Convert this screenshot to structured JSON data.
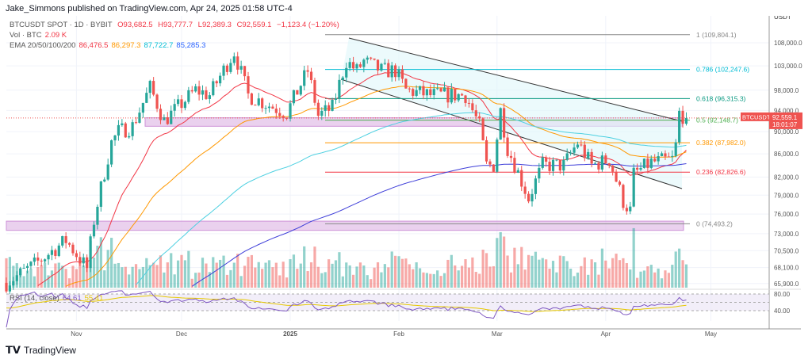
{
  "header": {
    "published": "Jake_Simmons published on TradingView.com, Apr 24, 2025 01:58 UTC-4"
  },
  "legend": {
    "symbol": "BTCUSDT SPOT · 1D · BYBIT",
    "open": "O93,682.5",
    "high": "H93,777.7",
    "low": "L92,389.3",
    "close": "C92,559.1",
    "change": "−1,123.4 (−1.20%)",
    "vol_label": "Vol · BTC",
    "vol_value": "2.09 K",
    "ema_label": "EMA 20/50/100/200",
    "ema20": "86,476.5",
    "ema50": "86,297.3",
    "ema100": "87,722.7",
    "ema200": "85,285.3"
  },
  "axis": {
    "currency": "USDT",
    "scale": "log",
    "price_ticks": [
      108000,
      103000,
      98000,
      94000,
      90000,
      86000,
      82000,
      79000,
      76000,
      73000,
      70500,
      68100,
      65900
    ],
    "price_tick_labels": [
      "108,000.0",
      "103,000.0",
      "98,000.0",
      "94,000.0",
      "90,000.0",
      "86,000.0",
      "82,000.0",
      "79,000.0",
      "76,000.0",
      "73,000.0",
      "70,500.0",
      "68,100.0",
      "65,900.0"
    ],
    "rsi_ticks": [
      "80.00",
      "40.00"
    ],
    "time_labels": [
      "Nov",
      "Dec",
      "2025",
      "Feb",
      "Mar",
      "Apr",
      "May"
    ]
  },
  "price_tag": {
    "symbol": "BTCUSDT",
    "price": "92,559.1",
    "countdown": "18:01:07"
  },
  "rsi": {
    "label": "RSI (14, close)",
    "value": "64.61",
    "ma": "55.41"
  },
  "colors": {
    "up": "#26a69a",
    "down": "#ef5350",
    "ema20": "#f23645",
    "ema50": "#ff9800",
    "ema100": "#4dd0e1",
    "ema200": "#3f3fd9",
    "zone": "#ce93d8"
  },
  "chart_data": {
    "type": "candlestick",
    "title": "",
    "start_date": "2024-10-12",
    "end_date": "2025-04-24",
    "close_path": [
      [
        "2024-10-12",
        66000
      ],
      [
        "2024-10-20",
        68500
      ],
      [
        "2024-10-29",
        72000
      ],
      [
        "2024-11-04",
        68000
      ],
      [
        "2024-11-06",
        75000
      ],
      [
        "2024-11-11",
        88000
      ],
      [
        "2024-11-13",
        90000
      ],
      [
        "2024-11-17",
        91000
      ],
      [
        "2024-11-22",
        98500
      ],
      [
        "2024-11-26",
        92000
      ],
      [
        "2024-12-05",
        98000
      ],
      [
        "2024-12-09",
        97000
      ],
      [
        "2024-12-16",
        106000
      ],
      [
        "2024-12-20",
        97000
      ],
      [
        "2024-12-26",
        95000
      ],
      [
        "2024-12-31",
        93500
      ],
      [
        "2025-01-06",
        102000
      ],
      [
        "2025-01-09",
        93000
      ],
      [
        "2025-01-13",
        94500
      ],
      [
        "2025-01-17",
        104000
      ],
      [
        "2025-01-20",
        102000
      ],
      [
        "2025-01-22",
        104000
      ],
      [
        "2025-01-27",
        102000
      ],
      [
        "2025-01-31",
        102000
      ],
      [
        "2025-02-03",
        98000
      ],
      [
        "2025-02-10",
        97000
      ],
      [
        "2025-02-20",
        97000
      ],
      [
        "2025-02-24",
        91000
      ],
      [
        "2025-02-26",
        84000
      ],
      [
        "2025-02-28",
        84000
      ],
      [
        "2025-03-02",
        94000
      ],
      [
        "2025-03-04",
        87000
      ],
      [
        "2025-03-10",
        78500
      ],
      [
        "2025-03-14",
        84000
      ],
      [
        "2025-03-20",
        84000
      ],
      [
        "2025-03-24",
        88000
      ],
      [
        "2025-03-28",
        84000
      ],
      [
        "2025-04-02",
        85000
      ],
      [
        "2025-04-06",
        78000
      ],
      [
        "2025-04-08",
        76500
      ],
      [
        "2025-04-09",
        82500
      ],
      [
        "2025-04-14",
        84500
      ],
      [
        "2025-04-20",
        85000
      ],
      [
        "2025-04-21",
        87500
      ],
      [
        "2025-04-22",
        93500
      ],
      [
        "2025-04-24",
        92559.1
      ]
    ],
    "fib_levels": [
      {
        "label": "1 (109,804.1)",
        "value": 109804.1,
        "color": "#888"
      },
      {
        "label": "0.786 (102,247.6)",
        "value": 102247.6,
        "color": "#00bcd4"
      },
      {
        "label": "0.618 (96,315.3)",
        "value": 96315.3,
        "color": "#089981"
      },
      {
        "label": "0.5 (92,148.7)",
        "value": 92148.7,
        "color": "#4caf50"
      },
      {
        "label": "0.382 (87,982.0)",
        "value": 87982.0,
        "color": "#ff9800"
      },
      {
        "label": "0.236 (82,826.6)",
        "value": 82826.6,
        "color": "#f23645"
      },
      {
        "label": "0 (74,493.2)",
        "value": 74493.2,
        "color": "#888"
      }
    ],
    "zones": [
      [
        91000,
        92600
      ],
      [
        73500,
        74900
      ]
    ],
    "ylim": [
      65000,
      112000
    ]
  }
}
